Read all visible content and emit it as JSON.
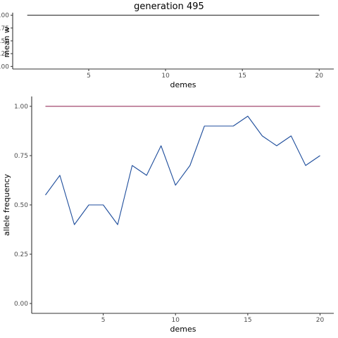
{
  "title": "generation 495",
  "chart_data": [
    {
      "type": "line",
      "xlabel": "demes",
      "ylabel": "mean w",
      "xlim": [
        0.05,
        20.95
      ],
      "ylim": [
        -0.05,
        1.05
      ],
      "x_ticks": [
        5,
        10,
        15,
        20
      ],
      "y_ticks": [
        0,
        0.25,
        0.5,
        0.75,
        1.0
      ],
      "y_tick_labels": [
        "0.00",
        "0.25",
        "0.50",
        "0.75",
        "1.00"
      ],
      "grid": false,
      "series": [
        {
          "color": "#333333",
          "x": [
            1,
            2,
            3,
            4,
            5,
            6,
            7,
            8,
            9,
            10,
            11,
            12,
            13,
            14,
            15,
            16,
            17,
            18,
            19,
            20
          ],
          "values": [
            1,
            1,
            1,
            1,
            1,
            1,
            1,
            1,
            1,
            1,
            1,
            1,
            1,
            1,
            1,
            1,
            1,
            1,
            1,
            1
          ]
        }
      ]
    },
    {
      "type": "line",
      "xlabel": "demes",
      "ylabel": "allele frequency",
      "xlim": [
        0.05,
        20.95
      ],
      "ylim": [
        -0.05,
        1.05
      ],
      "x_ticks": [
        5,
        10,
        15,
        20
      ],
      "y_ticks": [
        0,
        0.25,
        0.5,
        0.75,
        1.0
      ],
      "y_tick_labels": [
        "0.00",
        "0.25",
        "0.50",
        "0.75",
        "1.00"
      ],
      "grid": false,
      "series": [
        {
          "color": "#8b1a4a",
          "x": [
            1,
            2,
            3,
            4,
            5,
            6,
            7,
            8,
            9,
            10,
            11,
            12,
            13,
            14,
            15,
            16,
            17,
            18,
            19,
            20
          ],
          "values": [
            1,
            1,
            1,
            1,
            1,
            1,
            1,
            1,
            1,
            1,
            1,
            1,
            1,
            1,
            1,
            1,
            1,
            1,
            1,
            1
          ]
        },
        {
          "color": "#1f4e9c",
          "x": [
            1,
            2,
            3,
            4,
            5,
            6,
            7,
            8,
            9,
            10,
            11,
            12,
            13,
            14,
            15,
            16,
            17,
            18,
            19,
            20
          ],
          "values": [
            0.55,
            0.65,
            0.4,
            0.5,
            0.5,
            0.4,
            0.7,
            0.65,
            0.8,
            0.6,
            0.7,
            0.9,
            0.9,
            0.9,
            0.95,
            0.85,
            0.8,
            0.85,
            0.7,
            0.75
          ]
        }
      ]
    }
  ]
}
